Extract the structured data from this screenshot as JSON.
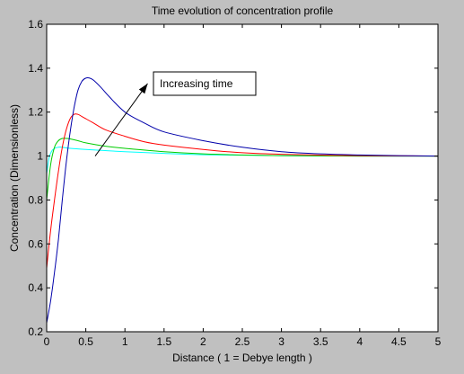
{
  "chart_data": {
    "type": "line",
    "title": "Time evolution of concentration profile",
    "xlabel": "Distance ( 1 = Debye length )",
    "ylabel": "Concentration (Dimensionless)",
    "xlim": [
      0,
      5
    ],
    "ylim": [
      0.2,
      1.6
    ],
    "xticks": [
      0,
      0.5,
      1,
      1.5,
      2,
      2.5,
      3,
      3.5,
      4,
      4.5,
      5
    ],
    "xtick_labels": [
      "0",
      "0.5",
      "1",
      "1.5",
      "2",
      "2.5",
      "3",
      "3.5",
      "4",
      "4.5",
      "5"
    ],
    "yticks": [
      0.2,
      0.4,
      0.6,
      0.8,
      1,
      1.2,
      1.4,
      1.6
    ],
    "ytick_labels": [
      "0.2",
      "0.4",
      "0.6",
      "0.8",
      "1",
      "1.2",
      "1.4",
      "1.6"
    ],
    "grid": false,
    "annotation": {
      "text": "Increasing time",
      "arrow_from": [
        0.62,
        1.0
      ],
      "arrow_to": [
        1.29,
        1.33
      ]
    },
    "series": [
      {
        "color": "#00ffff",
        "x": [
          0,
          0.03,
          0.06,
          0.1,
          0.15,
          0.2,
          0.3,
          0.5,
          1,
          1.5,
          2,
          3,
          4,
          5
        ],
        "y": [
          0.92,
          0.99,
          1.02,
          1.035,
          1.04,
          1.04,
          1.035,
          1.03,
          1.02,
          1.012,
          1.006,
          1.002,
          1.0,
          1.0
        ]
      },
      {
        "color": "#00cc00",
        "x": [
          0,
          0.05,
          0.1,
          0.15,
          0.2,
          0.25,
          0.3,
          0.4,
          0.5,
          0.75,
          1,
          1.5,
          2,
          2.5,
          3,
          4,
          5
        ],
        "y": [
          0.8,
          0.96,
          1.04,
          1.07,
          1.08,
          1.08,
          1.078,
          1.07,
          1.06,
          1.045,
          1.035,
          1.02,
          1.01,
          1.005,
          1.002,
          1.0,
          1.0
        ]
      },
      {
        "color": "#ff0000",
        "x": [
          0,
          0.05,
          0.1,
          0.15,
          0.2,
          0.25,
          0.3,
          0.35,
          0.4,
          0.45,
          0.5,
          0.6,
          0.75,
          1,
          1.25,
          1.5,
          2,
          2.5,
          3,
          4,
          5
        ],
        "y": [
          0.49,
          0.66,
          0.8,
          0.93,
          1.04,
          1.12,
          1.17,
          1.19,
          1.19,
          1.18,
          1.17,
          1.15,
          1.12,
          1.09,
          1.065,
          1.05,
          1.03,
          1.015,
          1.008,
          1.002,
          1.0
        ]
      },
      {
        "color": "#0000aa",
        "x": [
          0,
          0.05,
          0.1,
          0.15,
          0.2,
          0.25,
          0.3,
          0.35,
          0.4,
          0.45,
          0.5,
          0.55,
          0.6,
          0.7,
          0.8,
          1,
          1.25,
          1.5,
          2,
          2.5,
          3,
          3.5,
          4,
          4.5,
          5
        ],
        "y": [
          0.24,
          0.34,
          0.47,
          0.62,
          0.8,
          0.97,
          1.11,
          1.22,
          1.3,
          1.34,
          1.355,
          1.355,
          1.345,
          1.31,
          1.27,
          1.2,
          1.15,
          1.11,
          1.07,
          1.04,
          1.02,
          1.01,
          1.005,
          1.002,
          1.0
        ]
      }
    ]
  }
}
